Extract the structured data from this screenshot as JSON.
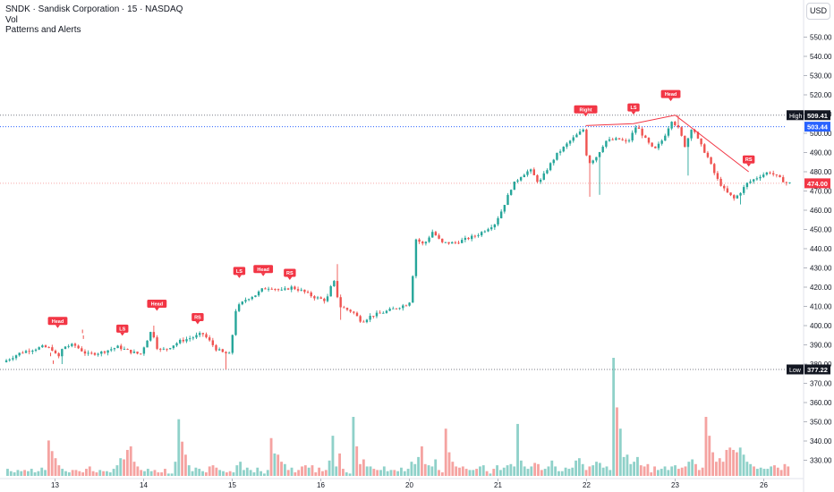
{
  "legend": {
    "title": "SNDK · Sandisk Corporation · 15 · NASDAQ",
    "volume": "Vol",
    "indicator": "Patterns and Alerts"
  },
  "currency_button": "USD",
  "colors": {
    "up": "#26a69a",
    "down": "#ef5350",
    "vol_up": "#8fd1c9",
    "vol_down": "#f5a3a1",
    "pattern": "#f23645",
    "price_badge": "#f23645",
    "level_badge": "#2962ff",
    "neckline": "#f23645"
  },
  "chart_data": {
    "type": "candlestick",
    "symbol": "SNDK",
    "interval": "15",
    "exchange": "NASDAQ",
    "y_axis": {
      "ticks": [
        330,
        340,
        350,
        360,
        370,
        380,
        390,
        400,
        410,
        420,
        430,
        440,
        450,
        460,
        470,
        480,
        490,
        500,
        510,
        520,
        530,
        540,
        550
      ]
    },
    "ylim": [
      325,
      557
    ],
    "x_labels": [
      {
        "label": "13",
        "slot": 5.5
      },
      {
        "label": "14",
        "slot": 15.5
      },
      {
        "label": "15",
        "slot": 25.5
      },
      {
        "label": "16",
        "slot": 35.5
      },
      {
        "label": "20",
        "slot": 45.5
      },
      {
        "label": "21",
        "slot": 55.5
      },
      {
        "label": "22",
        "slot": 65.5
      },
      {
        "label": "23",
        "slot": 75.5
      },
      {
        "label": "26",
        "slot": 85.5
      }
    ],
    "slots": 87,
    "high": {
      "label": "High",
      "value": 509.41
    },
    "low": {
      "label": "Low",
      "value": 377.22
    },
    "blue_level": {
      "value": 503.44,
      "text": "503.44"
    },
    "last_price": {
      "value": 474.0,
      "text": "474.00"
    },
    "anchors": [
      [
        0.0,
        381
      ],
      [
        2.0,
        386
      ],
      [
        4.5,
        389
      ],
      [
        5.5,
        388
      ],
      [
        6.2,
        383
      ],
      [
        6.8,
        389
      ],
      [
        8.0,
        390
      ],
      [
        9.5,
        385
      ],
      [
        11.0,
        386
      ],
      [
        13.0,
        389
      ],
      [
        14.0,
        387
      ],
      [
        15.5,
        385
      ],
      [
        16.8,
        398
      ],
      [
        17.5,
        387
      ],
      [
        18.5,
        388
      ],
      [
        20.0,
        392
      ],
      [
        21.5,
        394
      ],
      [
        22.5,
        396
      ],
      [
        23.5,
        391
      ],
      [
        24.0,
        388
      ],
      [
        24.8,
        386
      ],
      [
        25.6,
        385
      ],
      [
        26.3,
        409
      ],
      [
        27.5,
        414
      ],
      [
        28.5,
        416
      ],
      [
        29.3,
        419
      ],
      [
        30.2,
        420
      ],
      [
        31.5,
        418
      ],
      [
        32.5,
        420
      ],
      [
        33.8,
        418
      ],
      [
        35.0,
        415
      ],
      [
        36.5,
        413
      ],
      [
        37.3,
        424
      ],
      [
        38.0,
        410
      ],
      [
        39.5,
        407
      ],
      [
        40.5,
        402
      ],
      [
        41.5,
        405
      ],
      [
        43.0,
        407
      ],
      [
        45.5,
        411
      ],
      [
        46.0,
        413
      ],
      [
        46.6,
        445
      ],
      [
        47.5,
        442
      ],
      [
        48.5,
        449
      ],
      [
        49.5,
        443
      ],
      [
        51.0,
        443
      ],
      [
        53.5,
        447
      ],
      [
        55.5,
        453
      ],
      [
        56.3,
        460
      ],
      [
        57.5,
        473
      ],
      [
        58.5,
        478
      ],
      [
        59.5,
        481
      ],
      [
        60.5,
        474
      ],
      [
        61.5,
        482
      ],
      [
        62.5,
        489
      ],
      [
        64.0,
        496
      ],
      [
        65.5,
        502
      ],
      [
        66.0,
        484
      ],
      [
        67.0,
        488
      ],
      [
        68.0,
        496
      ],
      [
        69.5,
        497
      ],
      [
        70.5,
        495
      ],
      [
        71.5,
        504
      ],
      [
        72.5,
        497
      ],
      [
        73.5,
        491
      ],
      [
        74.5,
        497
      ],
      [
        75.5,
        507
      ],
      [
        76.3,
        502
      ],
      [
        77.0,
        493
      ],
      [
        77.8,
        504
      ],
      [
        78.5,
        496
      ],
      [
        79.5,
        488
      ],
      [
        80.5,
        477
      ],
      [
        81.5,
        470
      ],
      [
        82.5,
        466
      ],
      [
        83.0,
        468
      ],
      [
        84.0,
        474
      ],
      [
        85.5,
        478
      ],
      [
        86.5,
        480
      ],
      [
        87.5,
        477
      ],
      [
        88.5,
        474
      ]
    ],
    "wick_events": [
      {
        "slot": 6.2,
        "low": 380
      },
      {
        "slot": 16.8,
        "high": 400
      },
      {
        "slot": 24.8,
        "low": 377.22
      },
      {
        "slot": 37.3,
        "high": 432
      },
      {
        "slot": 37.9,
        "low": 403
      },
      {
        "slot": 66.0,
        "low": 467
      },
      {
        "slot": 67.0,
        "low": 468
      },
      {
        "slot": 77.0,
        "low": 478
      },
      {
        "slot": 76.0,
        "high": 509.41
      },
      {
        "slot": 82.8,
        "low": 463
      }
    ],
    "volume": [
      6,
      4,
      3,
      5,
      4,
      5,
      4,
      6,
      3,
      4,
      7,
      5,
      30,
      21,
      15,
      9,
      6,
      4,
      3,
      5,
      5,
      4,
      3,
      6,
      8,
      4,
      3,
      5,
      4,
      4,
      3,
      6,
      9,
      15,
      14,
      22,
      25,
      12,
      8,
      5,
      4,
      6,
      4,
      5,
      3,
      3,
      6,
      2,
      2,
      12,
      48,
      29,
      18,
      9,
      4,
      7,
      6,
      4,
      3,
      8,
      9,
      7,
      5,
      4,
      3,
      4,
      3,
      9,
      12,
      5,
      7,
      5,
      3,
      7,
      4,
      2,
      5,
      32,
      19,
      18,
      12,
      10,
      5,
      7,
      3,
      5,
      8,
      9,
      7,
      9,
      3,
      7,
      4,
      5,
      13,
      34,
      8,
      19,
      6,
      3,
      2,
      50,
      25,
      10,
      14,
      8,
      8,
      6,
      5,
      5,
      8,
      4,
      5,
      5,
      4,
      7,
      4,
      6,
      12,
      10,
      16,
      25,
      10,
      9,
      8,
      14,
      5,
      3,
      40,
      20,
      12,
      8,
      7,
      8,
      6,
      5,
      5,
      6,
      8,
      9,
      4,
      2,
      6,
      9,
      5,
      7,
      9,
      10,
      8,
      44,
      13,
      8,
      6,
      8,
      11,
      10,
      5,
      6,
      8,
      13,
      8,
      4,
      4,
      7,
      6,
      7,
      13,
      15,
      10,
      5,
      8,
      9,
      12,
      11,
      7,
      8,
      5,
      100,
      58,
      40,
      16,
      18,
      10,
      12,
      16,
      9,
      8,
      10,
      3,
      8,
      5,
      6,
      8,
      5,
      8,
      9,
      6,
      7,
      8,
      12,
      14,
      10,
      5,
      7,
      50,
      34,
      20,
      12,
      15,
      12,
      22,
      24,
      22,
      20,
      24,
      18,
      12,
      10,
      8,
      6,
      7,
      6,
      6,
      8,
      9,
      7,
      5,
      10,
      8
    ],
    "vol_max": 100,
    "patterns": [
      {
        "label": "Head",
        "slot": 5.8,
        "value": 398
      },
      {
        "label": "LS",
        "slot": 13.1,
        "value": 394
      },
      {
        "label": "Head",
        "slot": 17.0,
        "value": 407
      },
      {
        "label": "RS",
        "slot": 21.6,
        "value": 400
      },
      {
        "label": "LS",
        "slot": 26.3,
        "value": 424
      },
      {
        "label": "Head",
        "slot": 29.0,
        "value": 425
      },
      {
        "label": "RS",
        "slot": 32.0,
        "value": 423
      },
      {
        "label": "Right",
        "slot": 65.4,
        "value": 508
      },
      {
        "label": "LS",
        "slot": 70.8,
        "value": 509
      },
      {
        "label": "Head",
        "slot": 75.0,
        "value": 516
      },
      {
        "label": "RS",
        "slot": 83.8,
        "value": 482
      }
    ],
    "neckline": [
      [
        65.4,
        504
      ],
      [
        70.8,
        505
      ],
      [
        75.5,
        509.41
      ],
      [
        83.8,
        480
      ]
    ],
    "ticks_small": [
      {
        "slot": 5.0,
        "value": 385
      },
      {
        "slot": 5.3,
        "value": 381
      },
      {
        "slot": 8.6,
        "value": 397
      },
      {
        "slot": 8.7,
        "value": 394
      }
    ]
  }
}
